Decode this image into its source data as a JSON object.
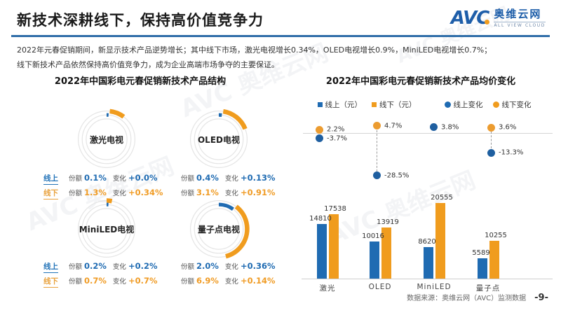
{
  "page": {
    "title": "新技术深耕线下，保持高价值竞争力",
    "logo": {
      "avc": "AVC",
      "name_cn": "奥维云网",
      "name_en": "ALL VIEW CLOUD"
    },
    "body_lines": [
      "2022年元春促销期间，新显示技术产品逆势增长；其中线下市场，激光电视增长0.34%，OLED电视增长0.9%，MiniLED电视增长0.7%；",
      "线下新技术产品依然保持高价值竞争力，成为企业高端市场争夺的主要保证。"
    ],
    "footer": {
      "source": "数据来源：奥维云网（AVC）监测数据",
      "page_no": "-9-"
    },
    "watermark": "AVC 奥维云网"
  },
  "colors": {
    "blue": "#1f6bb2",
    "orange": "#f09c1e",
    "dot_blue": "#1f5fa0",
    "dot_orange": "#ec9c30",
    "header_rule": "#2e6da8",
    "ring_gray": "#e5e5e5"
  },
  "chart_data": [
    {
      "type": "donut-grid",
      "title": "2022年中国彩电元春促销新技术产品结构",
      "row_labels": {
        "online": "线上",
        "offline": "线下"
      },
      "value_labels": {
        "share": "份额",
        "change": "变化"
      },
      "products": [
        {
          "name": "激光电视",
          "online": {
            "share": "0.1%",
            "change": "+0.0%"
          },
          "offline": {
            "share": "1.3%",
            "change": "+0.34%"
          },
          "online_arc": [
            0,
            0.013
          ],
          "offline_arc": [
            0.018,
            0.085
          ]
        },
        {
          "name": "OLED电视",
          "online": {
            "share": "0.4%",
            "change": "+0.13%"
          },
          "offline": {
            "share": "3.1%",
            "change": "+0.91%"
          },
          "online_arc": [
            0,
            0.02
          ],
          "offline_arc": [
            0.025,
            0.165
          ]
        },
        {
          "name": "MiniLED电视",
          "online": {
            "share": "0.2%",
            "change": "+0.2%"
          },
          "offline": {
            "share": "0.7%",
            "change": "+0.7%"
          },
          "online_arc": [
            0,
            0.012
          ],
          "offline_arc": [
            0,
            0.03
          ]
        },
        {
          "name": "量子点电视",
          "online": {
            "share": "2.0%",
            "change": "+0.36%"
          },
          "offline": {
            "share": "6.9%",
            "change": "+0.14%"
          },
          "online_arc": [
            0,
            0.1
          ],
          "offline_arc": [
            0.105,
            0.355
          ]
        }
      ]
    },
    {
      "type": "combo",
      "title": "2022年中国彩电元春促销新技术产品均价变化",
      "legend": [
        {
          "label": "线上（元）",
          "marker": "square",
          "color": "blue"
        },
        {
          "label": "线下（元）",
          "marker": "square",
          "color": "orange"
        },
        {
          "label": "线上变化",
          "marker": "circle",
          "color": "blue"
        },
        {
          "label": "线下变化",
          "marker": "circle",
          "color": "orange"
        }
      ],
      "categories": [
        "激光",
        "OLED",
        "MiniLED",
        "量子点"
      ],
      "bars": {
        "online_price": [
          14810,
          10016,
          8620,
          5589
        ],
        "offline_price": [
          17538,
          13919,
          20555,
          10255
        ]
      },
      "scatter": {
        "online_change_pct": [
          -3.7,
          -28.5,
          3.8,
          -13.3
        ],
        "offline_change_pct": [
          2.2,
          4.7,
          null,
          3.6
        ],
        "online_labels": [
          "-3.7%",
          "-28.5%",
          "3.8%",
          "-13.3%"
        ],
        "offline_labels": [
          "2.2%",
          "4.7%",
          null,
          "3.6%"
        ],
        "connectors": [
          false,
          true,
          false,
          true
        ]
      },
      "bar_max": 20555
    }
  ]
}
